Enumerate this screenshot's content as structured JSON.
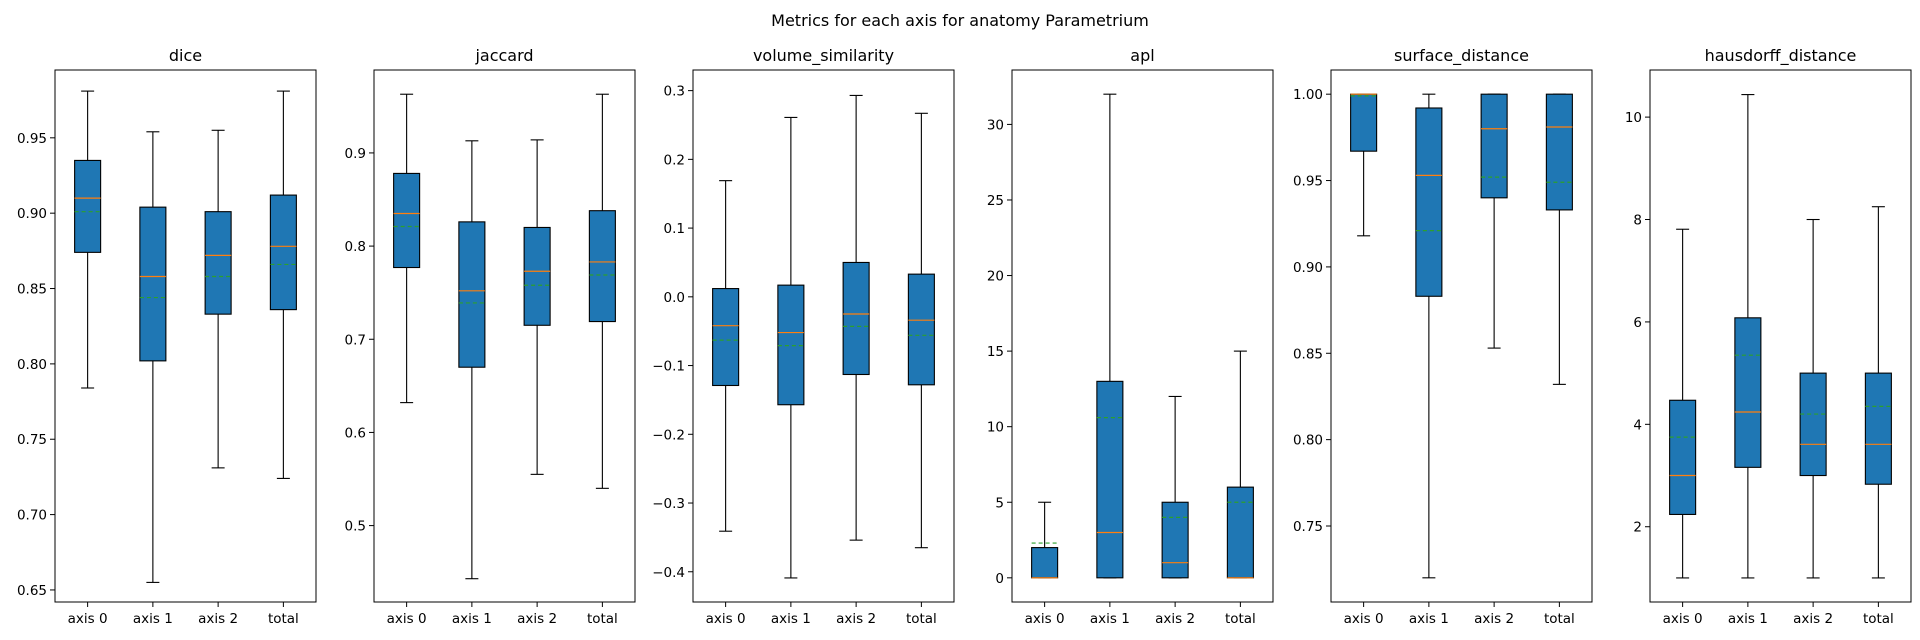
{
  "figure": {
    "suptitle": "Metrics for each axis for anatomy Parametrium",
    "colors": {
      "box": "#1f77b4",
      "median": "#ff7f0e",
      "mean": "#2ca02c",
      "line": "#000000"
    }
  },
  "chart_data": [
    {
      "type": "box",
      "title": "dice",
      "categories": [
        "axis 0",
        "axis 1",
        "axis 2",
        "total"
      ],
      "ylim": [
        0.642,
        0.995
      ],
      "yticks": [
        0.65,
        0.7,
        0.75,
        0.8,
        0.85,
        0.9,
        0.95
      ],
      "ytick_labels": [
        "0.65",
        "0.70",
        "0.75",
        "0.80",
        "0.85",
        "0.90",
        "0.95"
      ],
      "boxes": [
        {
          "whislo": 0.784,
          "q1": 0.874,
          "med": 0.91,
          "mean": 0.901,
          "q3": 0.935,
          "whishi": 0.981
        },
        {
          "whislo": 0.655,
          "q1": 0.802,
          "med": 0.858,
          "mean": 0.844,
          "q3": 0.904,
          "whishi": 0.954
        },
        {
          "whislo": 0.731,
          "q1": 0.833,
          "med": 0.872,
          "mean": 0.858,
          "q3": 0.901,
          "whishi": 0.955
        },
        {
          "whislo": 0.724,
          "q1": 0.836,
          "med": 0.878,
          "mean": 0.866,
          "q3": 0.912,
          "whishi": 0.981
        }
      ]
    },
    {
      "type": "box",
      "title": "jaccard",
      "categories": [
        "axis 0",
        "axis 1",
        "axis 2",
        "total"
      ],
      "ylim": [
        0.418,
        0.989
      ],
      "yticks": [
        0.5,
        0.6,
        0.7,
        0.8,
        0.9
      ],
      "ytick_labels": [
        "0.5",
        "0.6",
        "0.7",
        "0.8",
        "0.9"
      ],
      "boxes": [
        {
          "whislo": 0.632,
          "q1": 0.777,
          "med": 0.835,
          "mean": 0.821,
          "q3": 0.878,
          "whishi": 0.963
        },
        {
          "whislo": 0.443,
          "q1": 0.67,
          "med": 0.752,
          "mean": 0.739,
          "q3": 0.826,
          "whishi": 0.913
        },
        {
          "whislo": 0.555,
          "q1": 0.715,
          "med": 0.773,
          "mean": 0.758,
          "q3": 0.82,
          "whishi": 0.914
        },
        {
          "whislo": 0.54,
          "q1": 0.719,
          "med": 0.783,
          "mean": 0.769,
          "q3": 0.838,
          "whishi": 0.963
        }
      ]
    },
    {
      "type": "box",
      "title": "volume_similarity",
      "categories": [
        "axis 0",
        "axis 1",
        "axis 2",
        "total"
      ],
      "ylim": [
        -0.444,
        0.33
      ],
      "yticks": [
        -0.4,
        -0.3,
        -0.2,
        -0.1,
        0.0,
        0.1,
        0.2,
        0.3
      ],
      "ytick_labels": [
        "−0.4",
        "−0.3",
        "−0.2",
        "−0.1",
        "0.0",
        "0.1",
        "0.2",
        "0.3"
      ],
      "boxes": [
        {
          "whislo": -0.341,
          "q1": -0.129,
          "med": -0.042,
          "mean": -0.063,
          "q3": 0.012,
          "whishi": 0.169
        },
        {
          "whislo": -0.409,
          "q1": -0.157,
          "med": -0.052,
          "mean": -0.071,
          "q3": 0.017,
          "whishi": 0.261
        },
        {
          "whislo": -0.354,
          "q1": -0.113,
          "med": -0.025,
          "mean": -0.043,
          "q3": 0.05,
          "whishi": 0.293
        },
        {
          "whislo": -0.365,
          "q1": -0.128,
          "med": -0.034,
          "mean": -0.056,
          "q3": 0.033,
          "whishi": 0.267
        }
      ]
    },
    {
      "type": "box",
      "title": "apl",
      "categories": [
        "axis 0",
        "axis 1",
        "axis 2",
        "total"
      ],
      "ylim": [
        -1.6,
        33.6
      ],
      "yticks": [
        0,
        5,
        10,
        15,
        20,
        25,
        30
      ],
      "ytick_labels": [
        "0",
        "5",
        "10",
        "15",
        "20",
        "25",
        "30"
      ],
      "boxes": [
        {
          "whislo": 0.0,
          "q1": 0.0,
          "med": 0.0,
          "mean": 2.3,
          "q3": 2.0,
          "whishi": 5.0
        },
        {
          "whislo": 0.0,
          "q1": 0.0,
          "med": 3.0,
          "mean": 10.6,
          "q3": 13.0,
          "whishi": 32.0
        },
        {
          "whislo": 0.0,
          "q1": 0.0,
          "med": 1.0,
          "mean": 4.0,
          "q3": 5.0,
          "whishi": 12.0
        },
        {
          "whislo": 0.0,
          "q1": 0.0,
          "med": 0.0,
          "mean": 5.0,
          "q3": 6.0,
          "whishi": 15.0
        }
      ]
    },
    {
      "type": "box",
      "title": "surface_distance",
      "categories": [
        "axis 0",
        "axis 1",
        "axis 2",
        "total"
      ],
      "ylim": [
        0.706,
        1.014
      ],
      "yticks": [
        0.75,
        0.8,
        0.85,
        0.9,
        0.95,
        1.0
      ],
      "ytick_labels": [
        "0.75",
        "0.80",
        "0.85",
        "0.90",
        "0.95",
        "1.00"
      ],
      "boxes": [
        {
          "whislo": 0.918,
          "q1": 0.967,
          "med": 1.0,
          "mean": 0.999,
          "q3": 1.0,
          "whishi": 1.0
        },
        {
          "whislo": 0.72,
          "q1": 0.883,
          "med": 0.953,
          "mean": 0.921,
          "q3": 0.992,
          "whishi": 1.0
        },
        {
          "whislo": 0.853,
          "q1": 0.94,
          "med": 0.98,
          "mean": 0.952,
          "q3": 1.0,
          "whishi": 1.0
        },
        {
          "whislo": 0.832,
          "q1": 0.933,
          "med": 0.981,
          "mean": 0.949,
          "q3": 1.0,
          "whishi": 1.0
        }
      ]
    },
    {
      "type": "box",
      "title": "hausdorff_distance",
      "categories": [
        "axis 0",
        "axis 1",
        "axis 2",
        "total"
      ],
      "ylim": [
        0.53,
        10.92
      ],
      "yticks": [
        2,
        4,
        6,
        8,
        10
      ],
      "ytick_labels": [
        "2",
        "4",
        "6",
        "8",
        "10"
      ],
      "boxes": [
        {
          "whislo": 1.0,
          "q1": 2.24,
          "med": 3.0,
          "mean": 3.75,
          "q3": 4.47,
          "whishi": 7.81
        },
        {
          "whislo": 1.0,
          "q1": 3.16,
          "med": 4.24,
          "mean": 5.35,
          "q3": 6.08,
          "whishi": 10.44
        },
        {
          "whislo": 1.0,
          "q1": 3.0,
          "med": 3.61,
          "mean": 4.2,
          "q3": 5.0,
          "whishi": 8.0
        },
        {
          "whislo": 1.0,
          "q1": 2.83,
          "med": 3.61,
          "mean": 4.35,
          "q3": 5.0,
          "whishi": 8.25
        }
      ]
    }
  ]
}
